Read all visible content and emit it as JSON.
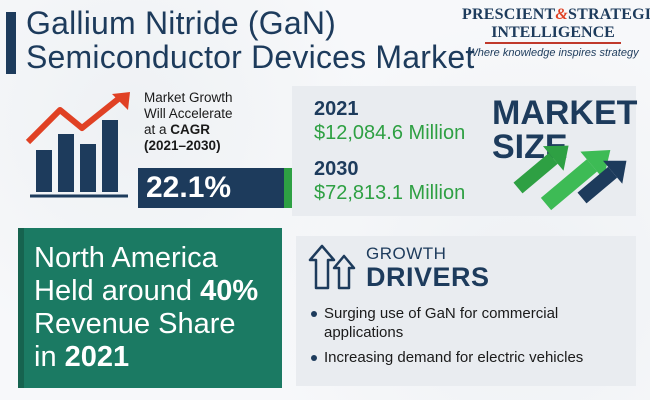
{
  "header": {
    "title_line1": "Gallium Nitride (GaN)",
    "title_line2": "Semiconductor Devices Market"
  },
  "logo": {
    "line1_a": "PRESCIENT",
    "line1_amp": "&",
    "line1_b": "STRATEGIC",
    "line2": "INTELLIGENCE",
    "tagline": "Where knowledge inspires strategy"
  },
  "growth": {
    "line1": "Market Growth",
    "line2": "Will Accelerate",
    "line3_pre": "at a",
    "line3_bold": "CAGR",
    "line4": "(2021–2030)",
    "cagr_value": "22.1%"
  },
  "market_size": {
    "title_line1": "MARKET",
    "title_line2": "SIZE",
    "entries": [
      {
        "year": "2021",
        "value": "$12,084.6 Million"
      },
      {
        "year": "2030",
        "value": "$72,813.1 Million"
      }
    ]
  },
  "north_america": {
    "line1": "North America",
    "line2_pre": "Held around",
    "line2_bold": "40%",
    "line3": "Revenue Share",
    "line4_pre": "in",
    "line4_bold": "2021"
  },
  "drivers": {
    "title_line1": "GROWTH",
    "title_line2": "DRIVERS",
    "items": [
      "Surging use of GaN for commercial applications",
      "Increasing demand for electric vehicles"
    ]
  },
  "colors": {
    "navy": "#1d3b5c",
    "green": "#2ea043",
    "teal": "#1b7a63",
    "orange": "#e04124"
  },
  "icons": {
    "growth_chart": "bar-chart-growth-arrow-icon",
    "market_arrows": "rising-arrows-icon",
    "drivers": "upward-house-arrows-icon"
  }
}
